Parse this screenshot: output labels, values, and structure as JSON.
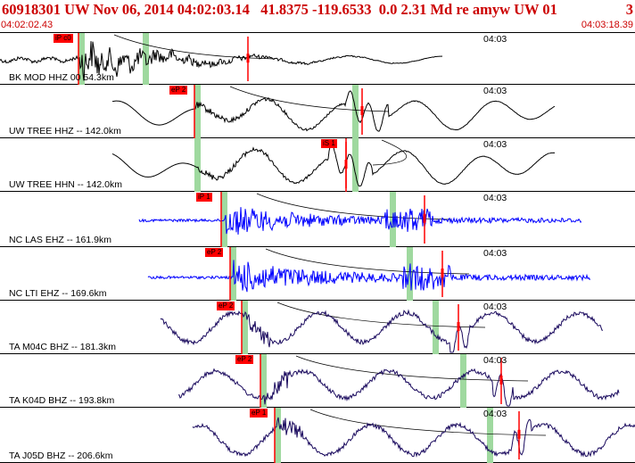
{
  "header": {
    "title": "60918301 UW Nov 06, 2014 04:02:03.14   41.8375 -119.6533  0.0 2.31 Md re amyw UW 01",
    "page": "3",
    "start_time": "04:02:02.43",
    "end_time": "04:03:18.39"
  },
  "colors": {
    "header_text": "#cc0000",
    "trace_black": "#000000",
    "trace_blue": "#0000ff",
    "trace_navy": "#1a0a5e",
    "pick_flag": "#ff0000",
    "window_band": "#9fd99f"
  },
  "traces": [
    {
      "label": "BK MOD HHZ 00 54.3km",
      "tick": "04:03",
      "pick": "iP c0",
      "color": "black"
    },
    {
      "label": "UW TREE HHZ -- 142.0km",
      "tick": "04:03",
      "pick": "eP 2",
      "color": "black"
    },
    {
      "label": "UW TREE HHN -- 142.0km",
      "tick": "04:03",
      "pick": "iS 1",
      "color": "black"
    },
    {
      "label": "NC LAS EHZ -- 161.9km",
      "tick": "04:03",
      "pick": "iP 1",
      "color": "blue"
    },
    {
      "label": "NC LTI EHZ -- 169.6km",
      "tick": "04:03",
      "pick": "eP 2",
      "color": "blue"
    },
    {
      "label": "TA M04C BHZ -- 181.3km",
      "tick": "04:03",
      "pick": "eP 2",
      "color": "navy"
    },
    {
      "label": "TA K04D BHZ -- 193.8km",
      "tick": "04:03",
      "pick": "eP 2",
      "color": "navy"
    },
    {
      "label": "TA J05D BHZ -- 206.6km",
      "tick": "04:03",
      "pick": "eP 1",
      "color": "navy"
    }
  ]
}
